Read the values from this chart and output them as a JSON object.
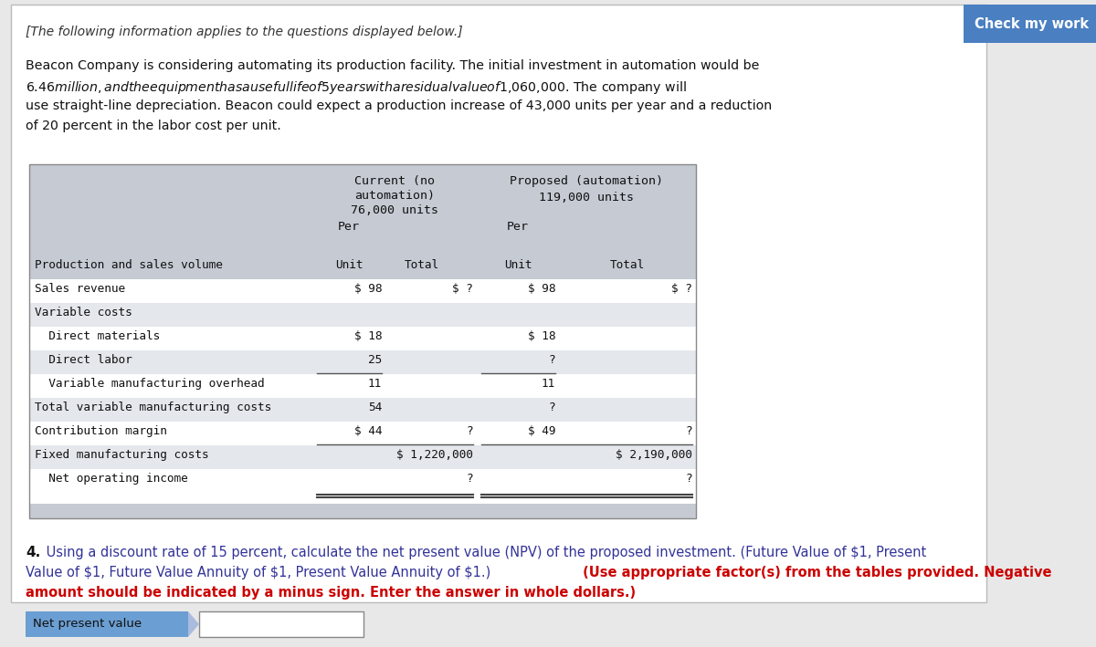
{
  "page_bg": "#e8e8e8",
  "content_bg": "#ffffff",
  "content_border": "#bbbbbb",
  "intro_italic": "[The following information applies to the questions displayed below.]",
  "intro_text_lines": [
    "Beacon Company is considering automating its production facility. The initial investment in automation would be",
    "$6.46 million, and the equipment has a useful life of 5 years with a residual value of $1,060,000. The company will",
    "use straight-line depreciation. Beacon could expect a production increase of 43,000 units per year and a reduction",
    "of 20 percent in the labor cost per unit."
  ],
  "table_header_bg": "#c5cad3",
  "table_row_bg_alt": "#e4e7ec",
  "table_row_bg_white": "#ffffff",
  "table_footer_bg": "#c5cad3",
  "col_header_current_1": "Current (no",
  "col_header_current_2": "automation)",
  "col_header_current_3": "76,000 units",
  "col_header_proposed_1": "Proposed (automation)",
  "col_header_proposed_2": "119,000 units",
  "rows": [
    {
      "label": "Production and sales volume",
      "indent": false,
      "cur_unit": "",
      "cur_total": "",
      "prop_unit": "",
      "prop_total": "",
      "bg": "header_row",
      "line_above_unit": false,
      "line_above_total": false
    },
    {
      "label": "Sales revenue",
      "indent": false,
      "cur_unit": "$ 98",
      "cur_total": "$ ?",
      "prop_unit": "$ 98",
      "prop_total": "$ ?",
      "bg": "white",
      "line_above_unit": false,
      "line_above_total": false
    },
    {
      "label": "Variable costs",
      "indent": false,
      "cur_unit": "",
      "cur_total": "",
      "prop_unit": "",
      "prop_total": "",
      "bg": "alt",
      "line_above_unit": false,
      "line_above_total": false
    },
    {
      "label": "  Direct materials",
      "indent": true,
      "cur_unit": "$ 18",
      "cur_total": "",
      "prop_unit": "$ 18",
      "prop_total": "",
      "bg": "white",
      "line_above_unit": false,
      "line_above_total": false
    },
    {
      "label": "  Direct labor",
      "indent": true,
      "cur_unit": "25",
      "cur_total": "",
      "prop_unit": "?",
      "prop_total": "",
      "bg": "alt",
      "line_above_unit": false,
      "line_above_total": false
    },
    {
      "label": "  Variable manufacturing overhead",
      "indent": true,
      "cur_unit": "11",
      "cur_total": "",
      "prop_unit": "11",
      "prop_total": "",
      "bg": "white",
      "line_above_unit": true,
      "line_above_total": false
    },
    {
      "label": "Total variable manufacturing costs",
      "indent": false,
      "cur_unit": "54",
      "cur_total": "",
      "prop_unit": "?",
      "prop_total": "",
      "bg": "alt",
      "line_above_unit": false,
      "line_above_total": false
    },
    {
      "label": "Contribution margin",
      "indent": false,
      "cur_unit": "$ 44",
      "cur_total": "?",
      "prop_unit": "$ 49",
      "prop_total": "?",
      "bg": "white",
      "line_above_unit": false,
      "line_above_total": false
    },
    {
      "label": "Fixed manufacturing costs",
      "indent": false,
      "cur_unit": "",
      "cur_total": "$ 1,220,000",
      "prop_unit": "",
      "prop_total": "$ 2,190,000",
      "bg": "alt",
      "line_above_unit": false,
      "line_above_total": true
    },
    {
      "label": "  Net operating income",
      "indent": true,
      "cur_unit": "",
      "cur_total": "?",
      "prop_unit": "",
      "prop_total": "?",
      "bg": "white",
      "line_above_unit": false,
      "line_above_total": false,
      "double_underline": true
    }
  ],
  "check_btn_text": "Check my work",
  "check_btn_bg": "#4a7fc1",
  "check_btn_fg": "#ffffff",
  "q4_text_normal": "4.",
  "q4_text_link": " Using a discount rate of 15 percent, calculate the net present value (NPV) of the proposed investment. (Future Value of $1, Present",
  "q4_line2_link": "Value of $1, Future Value Annuity of $1, Present Value Annuity of $1.)",
  "q4_line2_bold": " (Use appropriate factor(s) from the tables provided. Negative",
  "q4_line3_bold": "amount should be indicated by a minus sign. Enter the answer in whole dollars.)",
  "input_label": "Net present value",
  "input_label_bg": "#6b9ed2",
  "monospace": "DejaVu Sans Mono",
  "sans": "DejaVu Sans"
}
